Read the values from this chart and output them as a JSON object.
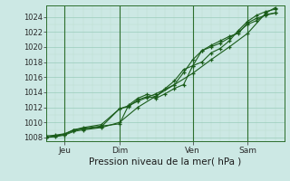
{
  "title": "",
  "xlabel": "Pression niveau de la mer( hPa )",
  "ylabel": "",
  "bg_color": "#cce8e4",
  "line_color": "#1a5c1a",
  "grid_major_color": "#99ccbb",
  "grid_minor_color": "#bbddcc",
  "axis_color": "#2d6e2d",
  "ylim": [
    1007.5,
    1025.5
  ],
  "xlim": [
    0,
    78
  ],
  "yticks": [
    1008,
    1010,
    1012,
    1014,
    1016,
    1018,
    1020,
    1022,
    1024
  ],
  "xtick_positions": [
    6,
    24,
    48,
    66
  ],
  "xtick_labels": [
    "Jeu",
    "Dim",
    "Ven",
    "Sam"
  ],
  "vlines": [
    6,
    24,
    48,
    66
  ],
  "series": [
    {
      "x": [
        0,
        3,
        6,
        9,
        12,
        18,
        24,
        27,
        30,
        33,
        36,
        39,
        42,
        45,
        48,
        51,
        54,
        57,
        60,
        63,
        66,
        69,
        72,
        75
      ],
      "y": [
        1008.2,
        1008.3,
        1008.5,
        1009.0,
        1009.3,
        1009.7,
        1011.8,
        1012.1,
        1013.0,
        1013.4,
        1013.2,
        1013.8,
        1014.5,
        1015.0,
        1017.5,
        1018.0,
        1019.2,
        1019.8,
        1020.8,
        1022.2,
        1023.4,
        1024.2,
        1024.7,
        1025.0
      ]
    },
    {
      "x": [
        0,
        3,
        6,
        9,
        12,
        18,
        24,
        27,
        30,
        33,
        36,
        39,
        42,
        45,
        48,
        51,
        54,
        57,
        60,
        63,
        66,
        69,
        72,
        75
      ],
      "y": [
        1008.0,
        1008.2,
        1008.4,
        1009.0,
        1009.2,
        1009.5,
        1009.8,
        1012.3,
        1013.2,
        1013.7,
        1013.4,
        1014.5,
        1015.5,
        1017.0,
        1017.5,
        1019.5,
        1020.0,
        1020.5,
        1021.2,
        1022.0,
        1023.0,
        1023.5,
        1024.3,
        1024.5
      ]
    },
    {
      "x": [
        0,
        3,
        6,
        9,
        12,
        18,
        24,
        27,
        30,
        33,
        36,
        42,
        45,
        48,
        51,
        54,
        57,
        60,
        63,
        66,
        69,
        72,
        75
      ],
      "y": [
        1008.0,
        1008.2,
        1008.4,
        1009.0,
        1009.1,
        1009.4,
        1011.8,
        1012.2,
        1012.8,
        1013.3,
        1013.8,
        1015.0,
        1016.6,
        1018.3,
        1019.5,
        1020.2,
        1020.8,
        1021.4,
        1021.8,
        1023.2,
        1023.8,
        1024.2,
        1024.5
      ]
    },
    {
      "x": [
        0,
        3,
        6,
        9,
        12,
        18,
        24,
        30,
        36,
        42,
        48,
        54,
        60,
        66,
        72,
        75
      ],
      "y": [
        1008.0,
        1008.1,
        1008.3,
        1008.8,
        1009.0,
        1009.3,
        1010.0,
        1012.0,
        1013.5,
        1015.0,
        1016.5,
        1018.3,
        1020.0,
        1021.8,
        1024.5,
        1025.2
      ]
    }
  ]
}
